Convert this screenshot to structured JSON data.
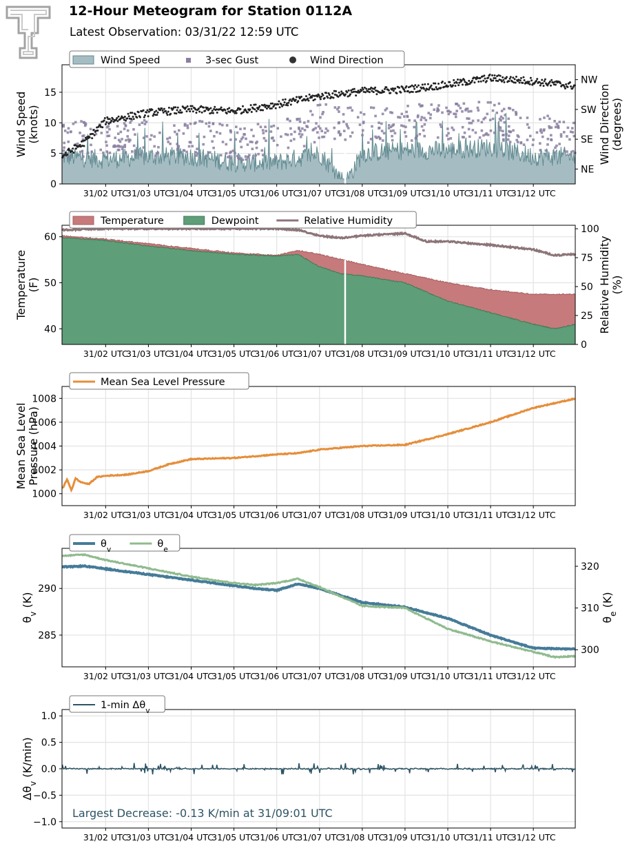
{
  "header": {
    "title": "12-Hour Meteogram for Station 0112A",
    "subtitle": "Latest Observation: 03/31/22 12:59 UTC"
  },
  "colors": {
    "wind_speed": "#a6bcc3",
    "wind_speed_line": "#5f8a8f",
    "gust": "#8a7fa0",
    "wind_dir": "#222222",
    "temperature": "#c77a7b",
    "dewpoint": "#5e9e79",
    "rh": "#8c7478",
    "pressure": "#e58e3a",
    "theta_v": "#457b97",
    "theta_e": "#8fbb8e",
    "dtheta": "#2c5364",
    "annotation": "#2c5364"
  },
  "chart_data": [
    {
      "id": "wind",
      "type": "area",
      "x_tick_labels": [
        "31/02 UTC",
        "31/03 UTC",
        "31/04 UTC",
        "31/05 UTC",
        "31/06 UTC",
        "31/07 UTC",
        "31/08 UTC",
        "31/09 UTC",
        "31/10 UTC",
        "31/11 UTC",
        "31/12 UTC"
      ],
      "ylabel": "Wind Speed\n(knots)",
      "ylim": [
        0,
        19.5
      ],
      "yticks": [
        0,
        5,
        10,
        15
      ],
      "ylabel_right": "Wind Direction\n(degrees)",
      "ylim_right": [
        0,
        360
      ],
      "yticks_right": [
        {
          "value": 45,
          "label": "NE"
        },
        {
          "value": 135,
          "label": "SE"
        },
        {
          "value": 225,
          "label": "SW"
        },
        {
          "value": 315,
          "label": "NW"
        }
      ],
      "legend": [
        "Wind Speed",
        "3-sec Gust",
        "Wind Direction"
      ],
      "legend_position": "top-left",
      "series": [
        {
          "name": "Wind Speed",
          "x_hours": [
            1.0,
            2.0,
            3.0,
            4.0,
            5.0,
            6.0,
            7.0,
            7.6,
            8.0,
            9.0,
            10.0,
            11.0,
            12.0,
            13.0
          ],
          "values": [
            4.5,
            4.0,
            4.5,
            4.5,
            3.5,
            3.5,
            5.0,
            0,
            5.0,
            5.5,
            5.5,
            6.0,
            4.5,
            4.5
          ]
        },
        {
          "name": "3-sec Gust",
          "x_hours": [
            1.0,
            2.0,
            3.0,
            4.0,
            5.0,
            6.0,
            7.0,
            8.0,
            9.0,
            10.0,
            11.0,
            12.0,
            13.0
          ],
          "values": [
            6.5,
            7.0,
            7.0,
            7.0,
            6.0,
            6.5,
            9.5,
            9.0,
            9.5,
            9.5,
            10.0,
            8.0,
            7.0
          ]
        },
        {
          "name": "Wind Direction",
          "x_hours": [
            1.0,
            1.5,
            2.0,
            3.0,
            4.0,
            5.0,
            6.0,
            7.0,
            8.0,
            9.0,
            10.0,
            11.0,
            12.0,
            13.0
          ],
          "values": [
            85,
            125,
            190,
            215,
            225,
            220,
            240,
            265,
            280,
            285,
            300,
            320,
            310,
            295
          ]
        }
      ]
    },
    {
      "id": "temp",
      "type": "area",
      "x_tick_labels": [
        "31/02 UTC",
        "31/03 UTC",
        "31/04 UTC",
        "31/05 UTC",
        "31/06 UTC",
        "31/07 UTC",
        "31/08 UTC",
        "31/09 UTC",
        "31/10 UTC",
        "31/11 UTC",
        "31/12 UTC"
      ],
      "ylabel": "Temperature\n(F)",
      "ylim": [
        36.6,
        62.5
      ],
      "yticks": [
        40,
        50,
        60
      ],
      "ylabel_right": "Relative Humidity\n(%)",
      "ylim_right": [
        0,
        103
      ],
      "yticks_right": [
        0,
        25,
        50,
        75,
        100
      ],
      "legend": [
        "Temperature",
        "Dewpoint",
        "Relative Humidity"
      ],
      "legend_position": "top-left",
      "series": [
        {
          "name": "Temperature",
          "x_hours": [
            1.0,
            2.0,
            3.0,
            4.0,
            5.0,
            6.0,
            6.5,
            7.0,
            8.0,
            9.0,
            10.0,
            11.0,
            12.0,
            13.0
          ],
          "values": [
            60.2,
            59.5,
            58.5,
            57.5,
            56.5,
            56.0,
            57.0,
            56.2,
            54.0,
            52.0,
            50.0,
            48.5,
            47.5,
            47.5
          ]
        },
        {
          "name": "Dewpoint",
          "x_hours": [
            1.0,
            2.0,
            3.0,
            4.0,
            5.0,
            6.0,
            6.5,
            7.0,
            7.5,
            8.0,
            9.0,
            10.0,
            11.0,
            12.0,
            12.5,
            13.0
          ],
          "values": [
            59.8,
            59.2,
            58.0,
            57.0,
            56.2,
            55.8,
            56.2,
            53.5,
            52.0,
            51.5,
            50.0,
            46.0,
            43.5,
            41.0,
            40.0,
            41.0
          ]
        },
        {
          "name": "Relative Humidity",
          "x_hours": [
            1.0,
            2.0,
            3.0,
            4.0,
            5.0,
            6.0,
            6.5,
            7.0,
            7.5,
            8.0,
            9.0,
            9.5,
            10.0,
            11.0,
            12.0,
            12.5,
            13.0
          ],
          "values": [
            99,
            100,
            100,
            100,
            100,
            100,
            99,
            94,
            92,
            94,
            96,
            89,
            89,
            86,
            82,
            77,
            78
          ]
        }
      ]
    },
    {
      "id": "pressure",
      "type": "line",
      "x_tick_labels": [
        "31/02 UTC",
        "31/03 UTC",
        "31/04 UTC",
        "31/05 UTC",
        "31/06 UTC",
        "31/07 UTC",
        "31/08 UTC",
        "31/09 UTC",
        "31/10 UTC",
        "31/11 UTC",
        "31/12 UTC"
      ],
      "ylabel": "Mean Sea Level\nPressure (hPa)",
      "ylim": [
        999.0,
        1009.0
      ],
      "yticks": [
        1000,
        1002,
        1004,
        1006,
        1008
      ],
      "legend": [
        "Mean Sea Level Pressure"
      ],
      "legend_position": "top-left",
      "series": [
        {
          "name": "Mean Sea Level Pressure",
          "x_hours": [
            1.0,
            1.1,
            1.2,
            1.3,
            1.4,
            1.6,
            1.8,
            2.0,
            2.5,
            3.0,
            3.5,
            4.0,
            5.0,
            6.0,
            6.5,
            7.0,
            8.0,
            9.0,
            10.0,
            11.0,
            12.0,
            13.0
          ],
          "values": [
            1000.5,
            1001.2,
            1000.3,
            1001.3,
            1001.0,
            1000.8,
            1001.4,
            1001.5,
            1001.6,
            1001.9,
            1002.5,
            1002.9,
            1003.0,
            1003.3,
            1003.4,
            1003.7,
            1004.0,
            1004.1,
            1005.0,
            1006.0,
            1007.2,
            1008.0
          ]
        }
      ]
    },
    {
      "id": "theta",
      "type": "line",
      "x_tick_labels": [
        "31/02 UTC",
        "31/03 UTC",
        "31/04 UTC",
        "31/05 UTC",
        "31/06 UTC",
        "31/07 UTC",
        "31/08 UTC",
        "31/09 UTC",
        "31/10 UTC",
        "31/11 UTC",
        "31/12 UTC"
      ],
      "ylabel": "θv (K)",
      "ylim": [
        281.6,
        294.3
      ],
      "yticks": [
        285,
        290
      ],
      "ylabel_right": "θe (K)",
      "ylim_right": [
        295.9,
        324.3
      ],
      "yticks_right": [
        300,
        310,
        320
      ],
      "legend": [
        "θv",
        "θe"
      ],
      "legend_position": "top-left",
      "series": [
        {
          "name": "θv",
          "x_hours": [
            1.0,
            1.5,
            2.0,
            3.0,
            4.0,
            5.0,
            5.5,
            6.0,
            6.5,
            7.0,
            8.0,
            9.0,
            10.0,
            11.0,
            12.0,
            13.0
          ],
          "values": [
            292.3,
            292.4,
            292.1,
            291.5,
            290.9,
            290.3,
            290.0,
            289.8,
            290.5,
            290.0,
            288.5,
            288.0,
            286.8,
            285.0,
            283.6,
            283.5
          ]
        },
        {
          "name": "θe",
          "x_hours": [
            1.0,
            1.5,
            2.0,
            3.0,
            4.0,
            5.0,
            5.5,
            6.0,
            6.5,
            7.0,
            8.0,
            9.0,
            10.0,
            11.0,
            12.0,
            12.5,
            13.0
          ],
          "values": [
            322.5,
            322.8,
            321.5,
            319.5,
            317.5,
            316.0,
            315.5,
            316.0,
            317.0,
            315.0,
            310.5,
            310.0,
            305.0,
            302.0,
            299.5,
            298.2,
            298.5
          ]
        }
      ]
    },
    {
      "id": "dtheta",
      "type": "line",
      "x_tick_labels": [
        "31/02 UTC",
        "31/03 UTC",
        "31/04 UTC",
        "31/05 UTC",
        "31/06 UTC",
        "31/07 UTC",
        "31/08 UTC",
        "31/09 UTC",
        "31/10 UTC",
        "31/11 UTC",
        "31/12 UTC"
      ],
      "ylabel": "Δθv (K/min)",
      "ylim": [
        -1.12,
        1.12
      ],
      "yticks": [
        -1.0,
        -0.5,
        0.0,
        0.5,
        1.0
      ],
      "legend": [
        "1-min Δθv"
      ],
      "legend_position": "top-left",
      "annotation": "Largest Decrease: -0.13 K/min at 31/09:01 UTC",
      "series": [
        {
          "name": "1-min Δθv",
          "x_hours": [
            1.0,
            13.0
          ],
          "values": [
            0.0,
            0.0
          ],
          "range": [
            -0.13,
            0.12
          ]
        }
      ]
    }
  ]
}
